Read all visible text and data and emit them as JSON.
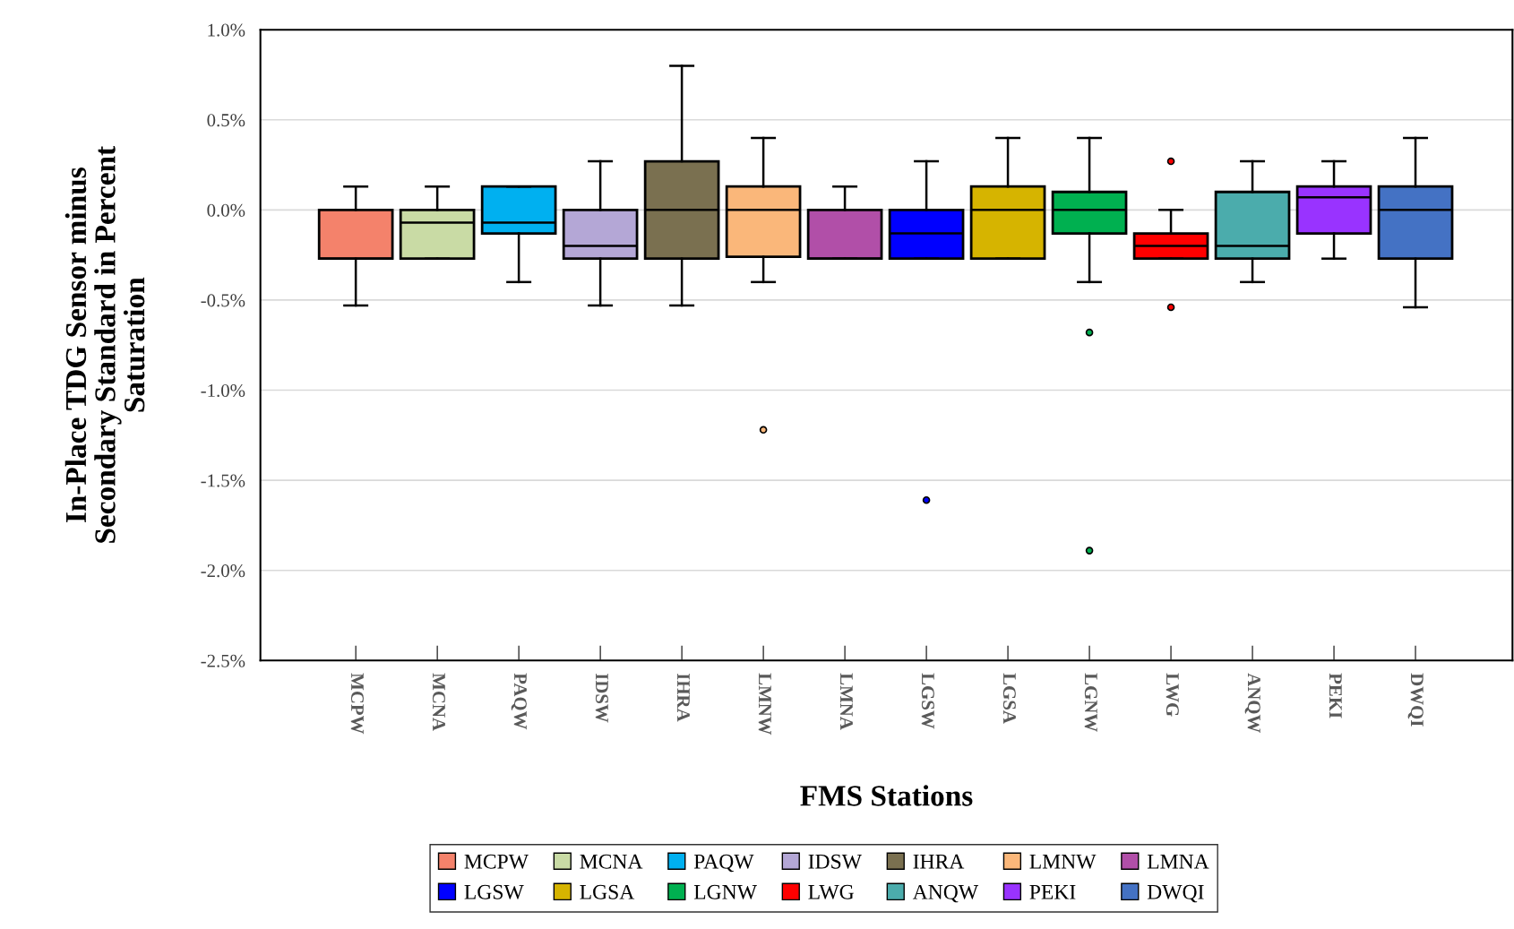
{
  "chart_data": {
    "type": "box",
    "xlabel": "FMS Stations",
    "ylabel": "In-Place TDG Sensor minus\nSecondary Standard in Percent\nSaturation",
    "categories": [
      "MCPW",
      "MCNA",
      "PAQW",
      "IDSW",
      "IHRA",
      "LMNW",
      "LMNA",
      "LGSW",
      "LGSA",
      "LGNW",
      "LWG",
      "ANQW",
      "PEKI",
      "DWQI"
    ],
    "series": [
      {
        "name": "MCPW",
        "color": "#f4826b",
        "boxes": [
          {
            "low": -0.53,
            "q1": -0.27,
            "median": -0.27,
            "q3": 0,
            "high": 0.13
          },
          null,
          null,
          null,
          null,
          null,
          null,
          null,
          null,
          null,
          null,
          null,
          null,
          null
        ]
      },
      {
        "name": "MCNA",
        "color": "#c9dba5",
        "boxes": [
          null,
          {
            "low": -0.27,
            "q1": -0.27,
            "median": -0.07,
            "q3": 0,
            "high": 0.13
          },
          null,
          null,
          null,
          null,
          null,
          null,
          null,
          null,
          null,
          null,
          null,
          null
        ]
      },
      {
        "name": "PAQW",
        "color": "#00b0f0",
        "boxes": [
          null,
          null,
          {
            "low": -0.4,
            "q1": -0.13,
            "median": -0.07,
            "q3": 0.13,
            "high": 0.13
          },
          null,
          null,
          null,
          null,
          null,
          null,
          null,
          null,
          null,
          null,
          null
        ]
      },
      {
        "name": "IDSW",
        "color": "#b4a7d6",
        "boxes": [
          null,
          null,
          null,
          {
            "low": -0.53,
            "q1": -0.27,
            "median": -0.2,
            "q3": 0,
            "high": 0.27
          },
          null,
          null,
          null,
          null,
          null,
          null,
          null,
          null,
          null,
          null
        ]
      },
      {
        "name": "IHRA",
        "color": "#7a7050",
        "boxes": [
          null,
          null,
          null,
          null,
          {
            "low": -0.53,
            "q1": -0.27,
            "median": 0,
            "q3": 0.27,
            "high": 0.8
          },
          null,
          null,
          null,
          null,
          null,
          null,
          null,
          null,
          null
        ]
      },
      {
        "name": "LMNW",
        "color": "#fab77a",
        "boxes": [
          null,
          null,
          null,
          null,
          null,
          {
            "low": -0.4,
            "q1": -0.26,
            "median": 0,
            "q3": 0.13,
            "high": 0.4,
            "outliers": [
              -1.22
            ]
          },
          null,
          null,
          null,
          null,
          null,
          null,
          null,
          null
        ]
      },
      {
        "name": "LMNA",
        "color": "#b14fa8",
        "boxes": [
          null,
          null,
          null,
          null,
          null,
          null,
          {
            "low": -0.27,
            "q1": -0.27,
            "median": -0.27,
            "q3": 0,
            "high": 0.13
          },
          null,
          null,
          null,
          null,
          null,
          null,
          null
        ]
      },
      {
        "name": "LGSW",
        "color": "#0000ff",
        "boxes": [
          null,
          null,
          null,
          null,
          null,
          null,
          null,
          {
            "low": -0.27,
            "q1": -0.27,
            "median": -0.13,
            "q3": 0,
            "high": 0.27,
            "outliers": [
              -1.61
            ]
          },
          null,
          null,
          null,
          null,
          null,
          null
        ]
      },
      {
        "name": "LGSA",
        "color": "#d6b400",
        "boxes": [
          null,
          null,
          null,
          null,
          null,
          null,
          null,
          null,
          {
            "low": -0.27,
            "q1": -0.27,
            "median": 0,
            "q3": 0.13,
            "high": 0.4
          },
          null,
          null,
          null,
          null,
          null
        ]
      },
      {
        "name": "LGNW",
        "color": "#00b050",
        "boxes": [
          null,
          null,
          null,
          null,
          null,
          null,
          null,
          null,
          null,
          {
            "low": -0.4,
            "q1": -0.13,
            "median": 0,
            "q3": 0.1,
            "high": 0.4,
            "outliers": [
              -0.68,
              -1.89
            ]
          },
          null,
          null,
          null,
          null
        ]
      },
      {
        "name": "LWG",
        "color": "#ff0000",
        "boxes": [
          null,
          null,
          null,
          null,
          null,
          null,
          null,
          null,
          null,
          null,
          {
            "low": -0.27,
            "q1": -0.27,
            "median": -0.2,
            "q3": -0.13,
            "high": 0,
            "outliers": [
              0.27,
              -0.54
            ]
          },
          null,
          null,
          null
        ]
      },
      {
        "name": "ANQW",
        "color": "#4bacac",
        "boxes": [
          null,
          null,
          null,
          null,
          null,
          null,
          null,
          null,
          null,
          null,
          null,
          {
            "low": -0.4,
            "q1": -0.27,
            "median": -0.2,
            "q3": 0.1,
            "high": 0.27
          },
          null,
          null
        ]
      },
      {
        "name": "PEKI",
        "color": "#9933ff",
        "boxes": [
          null,
          null,
          null,
          null,
          null,
          null,
          null,
          null,
          null,
          null,
          null,
          null,
          {
            "low": -0.27,
            "q1": -0.13,
            "median": 0.07,
            "q3": 0.13,
            "high": 0.27
          },
          null
        ]
      },
      {
        "name": "DWQI",
        "color": "#4472c4",
        "boxes": [
          null,
          null,
          null,
          null,
          null,
          null,
          null,
          null,
          null,
          null,
          null,
          null,
          null,
          {
            "low": -0.54,
            "q1": -0.27,
            "median": 0,
            "q3": 0.13,
            "high": 0.4
          }
        ]
      }
    ],
    "ylim": [
      -2.5,
      1.0
    ],
    "yticks": [
      {
        "value": -2.5,
        "label": "-2.5%"
      },
      {
        "value": -2.0,
        "label": "-2.0%"
      },
      {
        "value": -1.5,
        "label": "-1.5%"
      },
      {
        "value": -1.0,
        "label": "-1.0%"
      },
      {
        "value": -0.5,
        "label": "-0.5%"
      },
      {
        "value": 0.0,
        "label": "0.0%"
      },
      {
        "value": 0.5,
        "label": "0.5%"
      },
      {
        "value": 1.0,
        "label": "1.0%"
      }
    ],
    "grid": "y",
    "legend": "bottom"
  }
}
